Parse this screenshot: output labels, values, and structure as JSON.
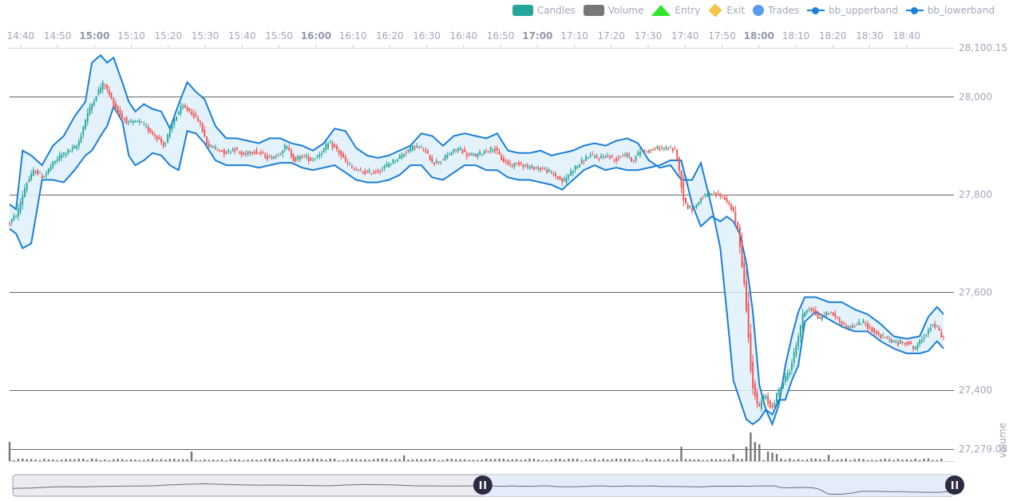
{
  "legend": [
    {
      "label": "Candles",
      "swatch": "rect",
      "color": "#26a69a"
    },
    {
      "label": "Volume",
      "swatch": "rect",
      "color": "#777777"
    },
    {
      "label": "Entry",
      "swatch": "triangle",
      "color": "#2ee62e"
    },
    {
      "label": "Exit",
      "swatch": "diamond",
      "color": "#f5c24c"
    },
    {
      "label": "Trades",
      "swatch": "dot",
      "color": "#5a9cf5"
    },
    {
      "label": "bb_upperband",
      "swatch": "line",
      "color": "#1a7fd6"
    },
    {
      "label": "bb_lowerband",
      "swatch": "line",
      "color": "#1a7fd6"
    }
  ],
  "chart_data": {
    "type": "candlestick",
    "x_range": [
      "14:37",
      "18:50"
    ],
    "x_ticks": [
      {
        "label": "14:40",
        "bold": false
      },
      {
        "label": "14:50",
        "bold": false
      },
      {
        "label": "15:00",
        "bold": true
      },
      {
        "label": "15:10",
        "bold": false
      },
      {
        "label": "15:20",
        "bold": false
      },
      {
        "label": "15:30",
        "bold": false
      },
      {
        "label": "15:40",
        "bold": false
      },
      {
        "label": "15:50",
        "bold": false
      },
      {
        "label": "16:00",
        "bold": true
      },
      {
        "label": "16:10",
        "bold": false
      },
      {
        "label": "16:20",
        "bold": false
      },
      {
        "label": "16:30",
        "bold": false
      },
      {
        "label": "16:40",
        "bold": false
      },
      {
        "label": "16:50",
        "bold": false
      },
      {
        "label": "17:00",
        "bold": true
      },
      {
        "label": "17:10",
        "bold": false
      },
      {
        "label": "17:20",
        "bold": false
      },
      {
        "label": "17:30",
        "bold": false
      },
      {
        "label": "17:40",
        "bold": false
      },
      {
        "label": "17:50",
        "bold": false
      },
      {
        "label": "18:00",
        "bold": true
      },
      {
        "label": "18:10",
        "bold": false
      },
      {
        "label": "18:20",
        "bold": false
      },
      {
        "label": "18:30",
        "bold": false
      },
      {
        "label": "18:40",
        "bold": false
      }
    ],
    "y_ticks": [
      "28,100.15",
      "28,000",
      "27,800",
      "27,600",
      "27,400",
      "27,279.08"
    ],
    "ylim": [
      27279.08,
      28100.15
    ],
    "grid_values": [
      28000,
      27800,
      27600,
      27400,
      27279.08
    ],
    "volume_axis_label": "volume",
    "colors": {
      "up": "#26a69a",
      "down": "#ef5350",
      "band": "#1a7fd6",
      "band_fill": "#dff0fb",
      "volume": "#777777"
    },
    "bb_upperband": [
      [
        0,
        27780
      ],
      [
        3,
        27770
      ],
      [
        6,
        27890
      ],
      [
        10,
        27880
      ],
      [
        15,
        27860
      ],
      [
        20,
        27900
      ],
      [
        25,
        27920
      ],
      [
        30,
        27960
      ],
      [
        35,
        27990
      ],
      [
        38,
        28070
      ],
      [
        42,
        28085
      ],
      [
        45,
        28070
      ],
      [
        48,
        28080
      ],
      [
        52,
        28030
      ],
      [
        55,
        27990
      ],
      [
        58,
        27970
      ],
      [
        62,
        27985
      ],
      [
        66,
        27975
      ],
      [
        70,
        27970
      ],
      [
        74,
        27935
      ],
      [
        78,
        27985
      ],
      [
        82,
        28030
      ],
      [
        86,
        28010
      ],
      [
        90,
        27995
      ],
      [
        95,
        27940
      ],
      [
        100,
        27915
      ],
      [
        105,
        27915
      ],
      [
        110,
        27910
      ],
      [
        115,
        27905
      ],
      [
        120,
        27915
      ],
      [
        125,
        27915
      ],
      [
        130,
        27905
      ],
      [
        135,
        27900
      ],
      [
        140,
        27890
      ],
      [
        145,
        27905
      ],
      [
        150,
        27935
      ],
      [
        155,
        27930
      ],
      [
        160,
        27895
      ],
      [
        165,
        27880
      ],
      [
        170,
        27875
      ],
      [
        175,
        27880
      ],
      [
        180,
        27890
      ],
      [
        185,
        27900
      ],
      [
        190,
        27925
      ],
      [
        195,
        27920
      ],
      [
        200,
        27900
      ],
      [
        205,
        27920
      ],
      [
        210,
        27925
      ],
      [
        215,
        27920
      ],
      [
        220,
        27915
      ],
      [
        225,
        27925
      ],
      [
        230,
        27890
      ],
      [
        235,
        27885
      ],
      [
        240,
        27885
      ],
      [
        245,
        27890
      ],
      [
        250,
        27880
      ],
      [
        255,
        27885
      ],
      [
        260,
        27890
      ],
      [
        265,
        27900
      ],
      [
        270,
        27905
      ],
      [
        275,
        27900
      ],
      [
        280,
        27910
      ],
      [
        285,
        27915
      ],
      [
        290,
        27905
      ],
      [
        295,
        27870
      ],
      [
        300,
        27855
      ],
      [
        305,
        27860
      ],
      [
        310,
        27830
      ],
      [
        315,
        27830
      ],
      [
        319,
        27865
      ],
      [
        324,
        27775
      ],
      [
        328,
        27690
      ],
      [
        331,
        27560
      ],
      [
        334,
        27420
      ],
      [
        337,
        27380
      ],
      [
        340,
        27340
      ],
      [
        343,
        27330
      ],
      [
        346,
        27340
      ],
      [
        349,
        27360
      ],
      [
        352,
        27330
      ],
      [
        355,
        27370
      ],
      [
        358,
        27450
      ],
      [
        361,
        27510
      ],
      [
        364,
        27560
      ],
      [
        367,
        27590
      ],
      [
        372,
        27590
      ],
      [
        378,
        27580
      ],
      [
        384,
        27580
      ],
      [
        390,
        27565
      ],
      [
        396,
        27555
      ],
      [
        402,
        27535
      ],
      [
        408,
        27510
      ],
      [
        414,
        27505
      ],
      [
        420,
        27510
      ],
      [
        424,
        27550
      ],
      [
        428,
        27570
      ],
      [
        431,
        27555
      ]
    ],
    "bb_lowerband": [
      [
        0,
        27730
      ],
      [
        3,
        27720
      ],
      [
        6,
        27690
      ],
      [
        10,
        27700
      ],
      [
        15,
        27830
      ],
      [
        20,
        27830
      ],
      [
        25,
        27825
      ],
      [
        30,
        27850
      ],
      [
        35,
        27880
      ],
      [
        38,
        27890
      ],
      [
        42,
        27920
      ],
      [
        45,
        27940
      ],
      [
        48,
        27980
      ],
      [
        52,
        27950
      ],
      [
        55,
        27880
      ],
      [
        58,
        27860
      ],
      [
        62,
        27870
      ],
      [
        66,
        27885
      ],
      [
        70,
        27880
      ],
      [
        74,
        27860
      ],
      [
        78,
        27850
      ],
      [
        82,
        27930
      ],
      [
        86,
        27925
      ],
      [
        90,
        27905
      ],
      [
        95,
        27870
      ],
      [
        100,
        27860
      ],
      [
        105,
        27860
      ],
      [
        110,
        27860
      ],
      [
        115,
        27855
      ],
      [
        120,
        27860
      ],
      [
        125,
        27865
      ],
      [
        130,
        27865
      ],
      [
        135,
        27855
      ],
      [
        140,
        27850
      ],
      [
        145,
        27855
      ],
      [
        150,
        27860
      ],
      [
        155,
        27845
      ],
      [
        160,
        27830
      ],
      [
        165,
        27825
      ],
      [
        170,
        27825
      ],
      [
        175,
        27830
      ],
      [
        180,
        27840
      ],
      [
        185,
        27860
      ],
      [
        190,
        27860
      ],
      [
        195,
        27835
      ],
      [
        200,
        27830
      ],
      [
        205,
        27845
      ],
      [
        210,
        27860
      ],
      [
        215,
        27860
      ],
      [
        220,
        27850
      ],
      [
        225,
        27850
      ],
      [
        230,
        27835
      ],
      [
        235,
        27830
      ],
      [
        240,
        27830
      ],
      [
        245,
        27825
      ],
      [
        250,
        27820
      ],
      [
        255,
        27810
      ],
      [
        260,
        27830
      ],
      [
        265,
        27850
      ],
      [
        270,
        27860
      ],
      [
        275,
        27850
      ],
      [
        280,
        27855
      ],
      [
        285,
        27850
      ],
      [
        290,
        27850
      ],
      [
        295,
        27855
      ],
      [
        300,
        27860
      ],
      [
        305,
        27870
      ],
      [
        310,
        27870
      ],
      [
        315,
        27780
      ],
      [
        319,
        27735
      ],
      [
        324,
        27755
      ],
      [
        328,
        27745
      ],
      [
        331,
        27755
      ],
      [
        334,
        27745
      ],
      [
        337,
        27720
      ],
      [
        340,
        27660
      ],
      [
        343,
        27560
      ],
      [
        346,
        27410
      ],
      [
        349,
        27360
      ],
      [
        352,
        27350
      ],
      [
        355,
        27380
      ],
      [
        358,
        27380
      ],
      [
        361,
        27420
      ],
      [
        364,
        27450
      ],
      [
        367,
        27540
      ],
      [
        372,
        27560
      ],
      [
        378,
        27545
      ],
      [
        384,
        27530
      ],
      [
        390,
        27520
      ],
      [
        396,
        27520
      ],
      [
        402,
        27500
      ],
      [
        408,
        27485
      ],
      [
        414,
        27475
      ],
      [
        420,
        27475
      ],
      [
        424,
        27480
      ],
      [
        428,
        27500
      ],
      [
        431,
        27485
      ]
    ],
    "mid_path": [
      [
        0,
        27740
      ],
      [
        4,
        27760
      ],
      [
        8,
        27820
      ],
      [
        12,
        27850
      ],
      [
        16,
        27835
      ],
      [
        20,
        27860
      ],
      [
        24,
        27880
      ],
      [
        28,
        27890
      ],
      [
        32,
        27900
      ],
      [
        36,
        27960
      ],
      [
        40,
        28000
      ],
      [
        44,
        28030
      ],
      [
        48,
        27990
      ],
      [
        52,
        27960
      ],
      [
        56,
        27945
      ],
      [
        60,
        27950
      ],
      [
        64,
        27935
      ],
      [
        68,
        27920
      ],
      [
        72,
        27900
      ],
      [
        76,
        27950
      ],
      [
        80,
        27980
      ],
      [
        84,
        27970
      ],
      [
        88,
        27950
      ],
      [
        92,
        27900
      ],
      [
        96,
        27895
      ],
      [
        100,
        27885
      ],
      [
        104,
        27895
      ],
      [
        108,
        27880
      ],
      [
        112,
        27890
      ],
      [
        116,
        27885
      ],
      [
        120,
        27875
      ],
      [
        124,
        27880
      ],
      [
        128,
        27900
      ],
      [
        132,
        27870
      ],
      [
        136,
        27880
      ],
      [
        140,
        27870
      ],
      [
        144,
        27885
      ],
      [
        148,
        27905
      ],
      [
        152,
        27890
      ],
      [
        156,
        27865
      ],
      [
        160,
        27850
      ],
      [
        164,
        27845
      ],
      [
        168,
        27845
      ],
      [
        172,
        27850
      ],
      [
        176,
        27865
      ],
      [
        180,
        27875
      ],
      [
        184,
        27890
      ],
      [
        188,
        27900
      ],
      [
        192,
        27890
      ],
      [
        196,
        27865
      ],
      [
        200,
        27870
      ],
      [
        204,
        27885
      ],
      [
        208,
        27895
      ],
      [
        212,
        27880
      ],
      [
        216,
        27880
      ],
      [
        220,
        27890
      ],
      [
        224,
        27895
      ],
      [
        228,
        27870
      ],
      [
        232,
        27860
      ],
      [
        236,
        27865
      ],
      [
        240,
        27855
      ],
      [
        244,
        27855
      ],
      [
        248,
        27850
      ],
      [
        252,
        27840
      ],
      [
        256,
        27825
      ],
      [
        260,
        27850
      ],
      [
        264,
        27865
      ],
      [
        268,
        27880
      ],
      [
        272,
        27875
      ],
      [
        276,
        27880
      ],
      [
        280,
        27870
      ],
      [
        284,
        27885
      ],
      [
        288,
        27870
      ],
      [
        292,
        27890
      ],
      [
        296,
        27890
      ],
      [
        300,
        27895
      ],
      [
        304,
        27895
      ],
      [
        308,
        27890
      ],
      [
        312,
        27780
      ],
      [
        316,
        27770
      ],
      [
        320,
        27795
      ],
      [
        324,
        27800
      ],
      [
        328,
        27800
      ],
      [
        331,
        27790
      ],
      [
        334,
        27770
      ],
      [
        337,
        27720
      ],
      [
        340,
        27600
      ],
      [
        343,
        27420
      ],
      [
        346,
        27360
      ],
      [
        349,
        27390
      ],
      [
        352,
        27360
      ],
      [
        355,
        27395
      ],
      [
        358,
        27420
      ],
      [
        361,
        27445
      ],
      [
        364,
        27500
      ],
      [
        367,
        27560
      ],
      [
        370,
        27570
      ],
      [
        374,
        27545
      ],
      [
        378,
        27560
      ],
      [
        382,
        27550
      ],
      [
        386,
        27530
      ],
      [
        390,
        27530
      ],
      [
        394,
        27540
      ],
      [
        398,
        27525
      ],
      [
        402,
        27510
      ],
      [
        406,
        27505
      ],
      [
        410,
        27495
      ],
      [
        414,
        27500
      ],
      [
        418,
        27485
      ],
      [
        422,
        27505
      ],
      [
        426,
        27535
      ],
      [
        429,
        27525
      ],
      [
        431,
        27505
      ]
    ],
    "volume_spikes": [
      [
        0,
        4
      ],
      [
        84,
        2
      ],
      [
        183,
        1.2
      ],
      [
        311,
        3
      ],
      [
        335,
        1.5
      ],
      [
        340,
        3
      ],
      [
        342,
        6
      ],
      [
        344,
        4
      ],
      [
        346,
        3.5
      ],
      [
        350,
        2
      ],
      [
        352,
        1.8
      ],
      [
        355,
        1.5
      ],
      [
        378,
        1.3
      ]
    ],
    "navigator": {
      "window_start": 0.499,
      "window_end": 1.0
    }
  }
}
